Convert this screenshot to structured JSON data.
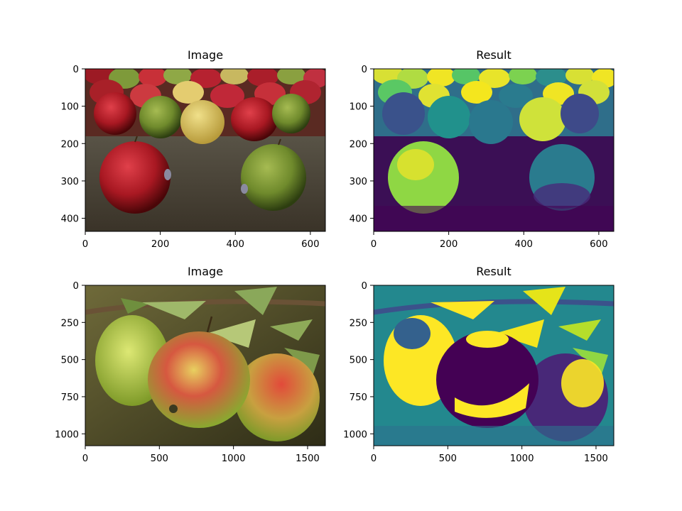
{
  "figure_title": "",
  "chart_data": [
    {
      "type": "image",
      "title": "Image",
      "description": "photo of red, green and yellow apples on a table",
      "xlim": [
        0,
        640
      ],
      "ylim": [
        435,
        0
      ],
      "xticks": [
        0,
        200,
        400,
        600
      ],
      "yticks": [
        0,
        100,
        200,
        300,
        400
      ],
      "xtick_labels": [
        "0",
        "200",
        "400",
        "600"
      ],
      "ytick_labels": [
        "0",
        "100",
        "200",
        "300",
        "400"
      ]
    },
    {
      "type": "image",
      "title": "Result",
      "colormap": "viridis",
      "description": "single-channel result of the apples-on-table photo",
      "xlim": [
        0,
        640
      ],
      "ylim": [
        435,
        0
      ],
      "xticks": [
        0,
        200,
        400,
        600
      ],
      "yticks": [
        0,
        100,
        200,
        300,
        400
      ],
      "xtick_labels": [
        "0",
        "200",
        "400",
        "600"
      ],
      "ytick_labels": [
        "0",
        "100",
        "200",
        "300",
        "400"
      ]
    },
    {
      "type": "image",
      "title": "Image",
      "description": "photo of three red-green apples hanging on a branch",
      "xlim": [
        0,
        1620
      ],
      "ylim": [
        1080,
        0
      ],
      "xticks": [
        0,
        500,
        1000,
        1500
      ],
      "yticks": [
        0,
        250,
        500,
        750,
        1000
      ],
      "xtick_labels": [
        "0",
        "500",
        "1000",
        "1500"
      ],
      "ytick_labels": [
        "0",
        "250",
        "500",
        "750",
        "1000"
      ]
    },
    {
      "type": "image",
      "title": "Result",
      "colormap": "viridis",
      "description": "single-channel result of the apples-on-branch photo",
      "xlim": [
        0,
        1620
      ],
      "ylim": [
        1080,
        0
      ],
      "xticks": [
        0,
        500,
        1000,
        1500
      ],
      "yticks": [
        0,
        250,
        500,
        750,
        1000
      ],
      "xtick_labels": [
        "0",
        "500",
        "1000",
        "1500"
      ],
      "ytick_labels": [
        "0",
        "250",
        "500",
        "750",
        "1000"
      ]
    }
  ]
}
